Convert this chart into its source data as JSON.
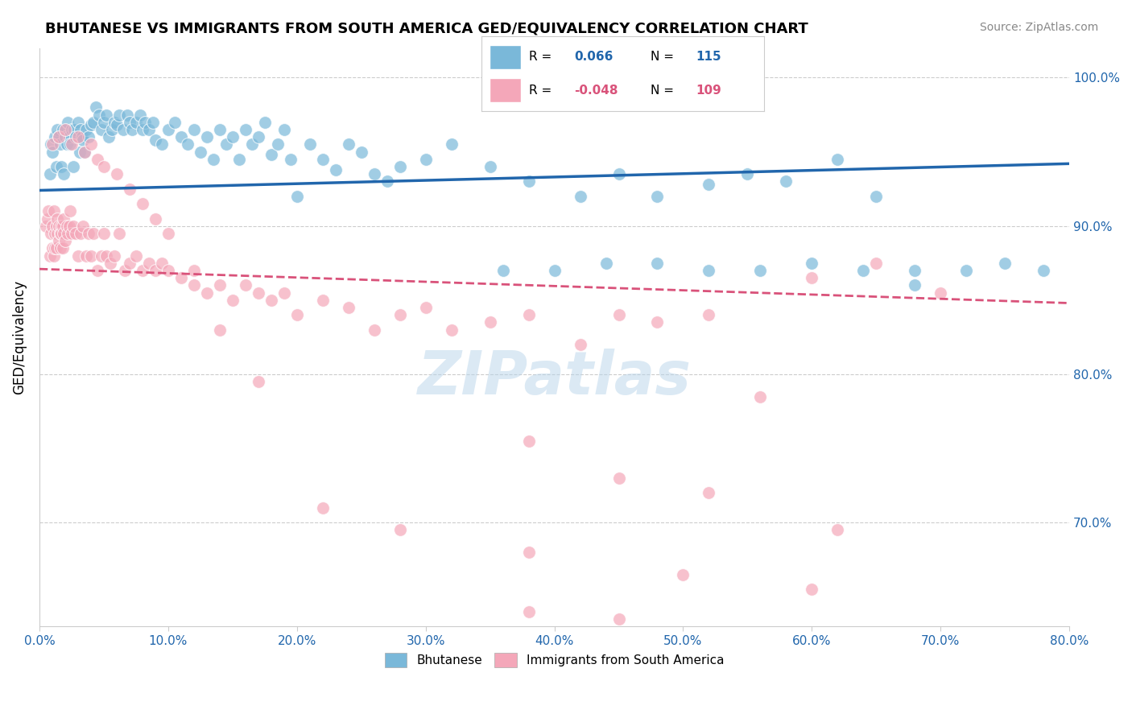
{
  "title": "BHUTANESE VS IMMIGRANTS FROM SOUTH AMERICA GED/EQUIVALENCY CORRELATION CHART",
  "source": "Source: ZipAtlas.com",
  "ylabel": "GED/Equivalency",
  "watermark": "ZIPatlas",
  "blue_scatter_x": [
    0.008,
    0.009,
    0.01,
    0.012,
    0.013,
    0.014,
    0.015,
    0.016,
    0.017,
    0.018,
    0.019,
    0.02,
    0.021,
    0.022,
    0.023,
    0.024,
    0.025,
    0.026,
    0.027,
    0.028,
    0.03,
    0.031,
    0.032,
    0.033,
    0.034,
    0.035,
    0.036,
    0.038,
    0.04,
    0.042,
    0.044,
    0.046,
    0.048,
    0.05,
    0.052,
    0.054,
    0.056,
    0.058,
    0.06,
    0.062,
    0.065,
    0.068,
    0.07,
    0.072,
    0.075,
    0.078,
    0.08,
    0.082,
    0.085,
    0.088,
    0.09,
    0.095,
    0.1,
    0.105,
    0.11,
    0.115,
    0.12,
    0.125,
    0.13,
    0.135,
    0.14,
    0.145,
    0.15,
    0.155,
    0.16,
    0.165,
    0.17,
    0.175,
    0.18,
    0.185,
    0.19,
    0.195,
    0.2,
    0.21,
    0.22,
    0.23,
    0.24,
    0.25,
    0.26,
    0.27,
    0.28,
    0.3,
    0.32,
    0.35,
    0.38,
    0.42,
    0.45,
    0.48,
    0.52,
    0.55,
    0.58,
    0.62,
    0.65,
    0.68,
    0.72,
    0.75,
    0.78,
    0.36,
    0.4,
    0.44,
    0.48,
    0.52,
    0.56,
    0.6,
    0.64,
    0.68
  ],
  "blue_scatter_y": [
    0.935,
    0.955,
    0.95,
    0.96,
    0.94,
    0.965,
    0.96,
    0.955,
    0.94,
    0.965,
    0.935,
    0.96,
    0.955,
    0.97,
    0.96,
    0.955,
    0.965,
    0.94,
    0.965,
    0.96,
    0.97,
    0.95,
    0.965,
    0.96,
    0.958,
    0.95,
    0.965,
    0.96,
    0.968,
    0.97,
    0.98,
    0.975,
    0.965,
    0.97,
    0.975,
    0.96,
    0.965,
    0.97,
    0.968,
    0.975,
    0.965,
    0.975,
    0.97,
    0.965,
    0.97,
    0.975,
    0.965,
    0.97,
    0.965,
    0.97,
    0.958,
    0.955,
    0.965,
    0.97,
    0.96,
    0.955,
    0.965,
    0.95,
    0.96,
    0.945,
    0.965,
    0.955,
    0.96,
    0.945,
    0.965,
    0.955,
    0.96,
    0.97,
    0.948,
    0.955,
    0.965,
    0.945,
    0.92,
    0.955,
    0.945,
    0.938,
    0.955,
    0.95,
    0.935,
    0.93,
    0.94,
    0.945,
    0.955,
    0.94,
    0.93,
    0.92,
    0.935,
    0.92,
    0.928,
    0.935,
    0.93,
    0.945,
    0.92,
    0.86,
    0.87,
    0.875,
    0.87,
    0.87,
    0.87,
    0.875,
    0.875,
    0.87,
    0.87,
    0.875,
    0.87,
    0.87
  ],
  "pink_scatter_x": [
    0.005,
    0.006,
    0.007,
    0.008,
    0.009,
    0.01,
    0.01,
    0.011,
    0.011,
    0.012,
    0.012,
    0.013,
    0.013,
    0.014,
    0.014,
    0.015,
    0.015,
    0.016,
    0.016,
    0.017,
    0.017,
    0.018,
    0.018,
    0.019,
    0.019,
    0.02,
    0.021,
    0.022,
    0.023,
    0.024,
    0.025,
    0.026,
    0.028,
    0.03,
    0.032,
    0.034,
    0.036,
    0.038,
    0.04,
    0.042,
    0.045,
    0.048,
    0.05,
    0.052,
    0.055,
    0.058,
    0.062,
    0.066,
    0.07,
    0.075,
    0.08,
    0.085,
    0.09,
    0.095,
    0.1,
    0.11,
    0.12,
    0.13,
    0.14,
    0.15,
    0.16,
    0.17,
    0.18,
    0.19,
    0.2,
    0.22,
    0.24,
    0.26,
    0.28,
    0.3,
    0.32,
    0.35,
    0.38,
    0.42,
    0.45,
    0.48,
    0.52,
    0.56,
    0.6,
    0.65,
    0.7,
    0.01,
    0.015,
    0.02,
    0.025,
    0.03,
    0.035,
    0.04,
    0.045,
    0.05,
    0.06,
    0.07,
    0.08,
    0.09,
    0.1,
    0.12,
    0.14,
    0.17,
    0.22,
    0.28,
    0.38,
    0.5,
    0.6,
    0.38,
    0.45,
    0.52,
    0.62,
    0.38,
    0.45
  ],
  "pink_scatter_y": [
    0.9,
    0.905,
    0.91,
    0.88,
    0.895,
    0.885,
    0.9,
    0.91,
    0.88,
    0.895,
    0.885,
    0.9,
    0.885,
    0.895,
    0.905,
    0.89,
    0.9,
    0.895,
    0.885,
    0.9,
    0.895,
    0.9,
    0.885,
    0.895,
    0.905,
    0.89,
    0.9,
    0.895,
    0.9,
    0.91,
    0.895,
    0.9,
    0.895,
    0.88,
    0.895,
    0.9,
    0.88,
    0.895,
    0.88,
    0.895,
    0.87,
    0.88,
    0.895,
    0.88,
    0.875,
    0.88,
    0.895,
    0.87,
    0.875,
    0.88,
    0.87,
    0.875,
    0.87,
    0.875,
    0.87,
    0.865,
    0.87,
    0.855,
    0.86,
    0.85,
    0.86,
    0.855,
    0.85,
    0.855,
    0.84,
    0.85,
    0.845,
    0.83,
    0.84,
    0.845,
    0.83,
    0.835,
    0.84,
    0.82,
    0.84,
    0.835,
    0.84,
    0.785,
    0.865,
    0.875,
    0.855,
    0.955,
    0.96,
    0.965,
    0.955,
    0.96,
    0.95,
    0.955,
    0.945,
    0.94,
    0.935,
    0.925,
    0.915,
    0.905,
    0.895,
    0.86,
    0.83,
    0.795,
    0.71,
    0.695,
    0.68,
    0.665,
    0.655,
    0.755,
    0.73,
    0.72,
    0.695,
    0.64,
    0.635
  ],
  "blue_line_x": [
    0.0,
    0.8
  ],
  "blue_line_y": [
    0.924,
    0.942
  ],
  "pink_line_x": [
    0.0,
    0.8
  ],
  "pink_line_y": [
    0.871,
    0.848
  ],
  "xmin": 0.0,
  "xmax": 0.8,
  "ymin": 0.63,
  "ymax": 1.02,
  "xtick_vals": [
    0.0,
    0.1,
    0.2,
    0.3,
    0.4,
    0.5,
    0.6,
    0.7,
    0.8
  ],
  "xtick_labels": [
    "0.0%",
    "10.0%",
    "20.0%",
    "30.0%",
    "40.0%",
    "50.0%",
    "60.0%",
    "70.0%",
    "80.0%"
  ],
  "ytick_vals": [
    0.7,
    0.8,
    0.9,
    1.0
  ],
  "ytick_labels": [
    "70.0%",
    "80.0%",
    "90.0%",
    "100.0%"
  ],
  "blue_color": "#7ab8d9",
  "blue_line_color": "#2166ac",
  "pink_color": "#f4a7b9",
  "pink_line_color": "#d9527a",
  "title_fontsize": 13,
  "source_fontsize": 10,
  "axis_label_color": "#2166ac",
  "background_color": "#ffffff",
  "grid_color": "#cccccc",
  "legend_blue_r_val": "0.066",
  "legend_blue_n_val": "115",
  "legend_pink_r_val": "-0.048",
  "legend_pink_n_val": "109",
  "legend_label_blue": "Bhutanese",
  "legend_label_pink": "Immigrants from South America"
}
